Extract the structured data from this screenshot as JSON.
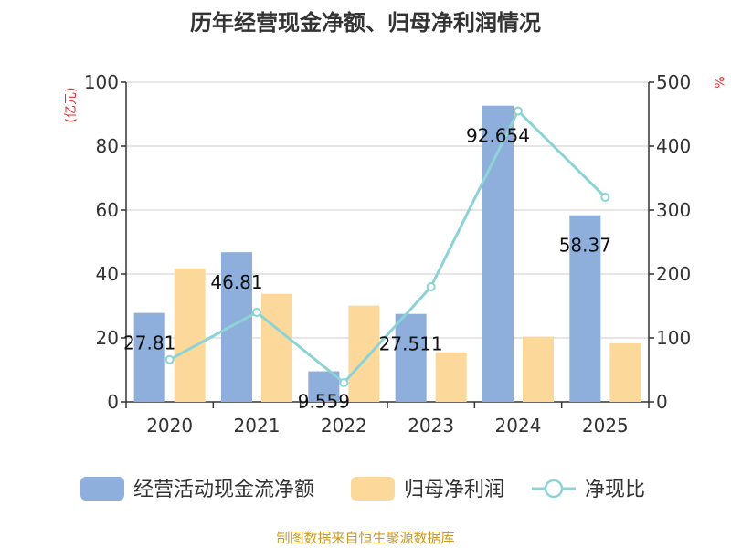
{
  "chart_data": {
    "type": "bar",
    "title": "历年经营现金净额、归母净利润情况",
    "categories": [
      "2020",
      "2021",
      "2022",
      "2023",
      "2024",
      "2025"
    ],
    "series": [
      {
        "name": "经营活动现金流净额",
        "kind": "bar",
        "axis": "left",
        "color": "#8eaedb",
        "values": [
          27.81,
          46.81,
          9.559,
          27.511,
          92.654,
          58.37
        ],
        "labels": [
          "27.81",
          "46.81",
          "9.559",
          "27.511",
          "92.654",
          "58.37"
        ]
      },
      {
        "name": "归母净利润",
        "kind": "bar",
        "axis": "left",
        "color": "#fcd89a",
        "values": [
          41.8,
          33.8,
          30.1,
          15.5,
          20.4,
          18.3
        ]
      },
      {
        "name": "净现比",
        "kind": "line",
        "axis": "right",
        "color": "#8dd3d6",
        "values": [
          66,
          140,
          30,
          180,
          455,
          320
        ]
      }
    ],
    "y_left": {
      "unit": "(亿元)",
      "min": 0,
      "max": 100,
      "ticks": [
        0,
        20,
        40,
        60,
        80,
        100
      ]
    },
    "y_right": {
      "unit": "%",
      "min": 0,
      "max": 500,
      "ticks": [
        0,
        100,
        200,
        300,
        400,
        500
      ]
    },
    "grid": true,
    "legend_position": "bottom",
    "unit_color": "#e03030",
    "source": "制图数据来自恒生聚源数据库",
    "source_color": "#c89a2a"
  }
}
